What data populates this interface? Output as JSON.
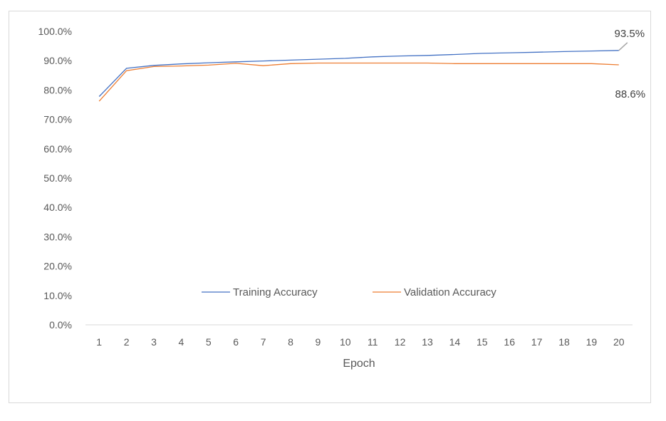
{
  "chart_data": {
    "type": "line",
    "title": "",
    "xlabel": "Epoch",
    "ylabel": "",
    "categories": [
      "1",
      "2",
      "3",
      "4",
      "5",
      "6",
      "7",
      "8",
      "9",
      "10",
      "11",
      "12",
      "13",
      "14",
      "15",
      "16",
      "17",
      "18",
      "19",
      "20"
    ],
    "ylim": [
      0,
      1
    ],
    "yticks": [
      "0.0%",
      "10.0%",
      "20.0%",
      "30.0%",
      "40.0%",
      "50.0%",
      "60.0%",
      "70.0%",
      "80.0%",
      "90.0%",
      "100.0%"
    ],
    "grid": false,
    "legend_position": "inside-bottom-center",
    "series": [
      {
        "name": "Training Accuracy",
        "color": "#4472C4",
        "values": [
          0.778,
          0.874,
          0.884,
          0.889,
          0.893,
          0.896,
          0.899,
          0.902,
          0.905,
          0.908,
          0.913,
          0.916,
          0.918,
          0.921,
          0.925,
          0.927,
          0.929,
          0.931,
          0.933,
          0.935
        ],
        "end_label": "93.5%"
      },
      {
        "name": "Validation Accuracy",
        "color": "#ED7D31",
        "values": [
          0.762,
          0.866,
          0.88,
          0.882,
          0.885,
          0.891,
          0.883,
          0.89,
          0.892,
          0.892,
          0.892,
          0.892,
          0.892,
          0.89,
          0.89,
          0.89,
          0.89,
          0.89,
          0.89,
          0.886
        ],
        "end_label": "88.6%"
      }
    ]
  }
}
